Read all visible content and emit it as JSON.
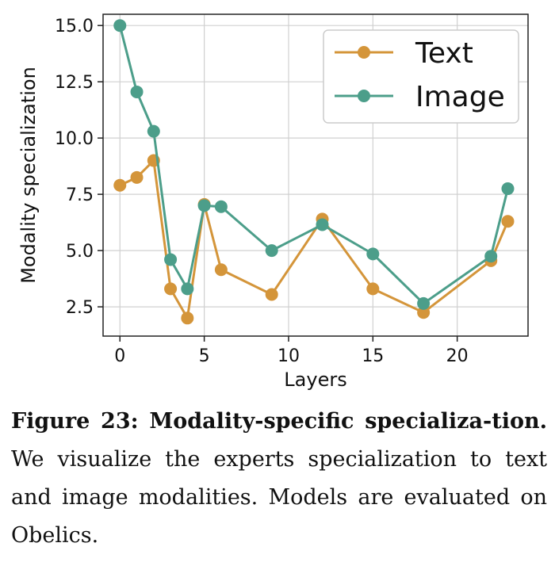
{
  "chart_data": {
    "type": "line",
    "xlabel": "Layers",
    "ylabel": "Modality specialization",
    "xlim": [
      -1,
      24.2
    ],
    "ylim": [
      1.2,
      15.5
    ],
    "xticks": [
      0,
      5,
      10,
      15,
      20
    ],
    "yticks": [
      2.5,
      5.0,
      7.5,
      10.0,
      12.5,
      15.0
    ],
    "xtick_labels": [
      "0",
      "5",
      "10",
      "15",
      "20"
    ],
    "ytick_labels": [
      "2.5",
      "5.0",
      "7.5",
      "10.0",
      "12.5",
      "15.0"
    ],
    "grid": true,
    "legend_position": "top-right",
    "x": [
      0,
      1,
      2,
      3,
      4,
      5,
      6,
      9,
      12,
      15,
      18,
      22,
      23
    ],
    "series": [
      {
        "name": "Text",
        "color": "#D4953A",
        "values": [
          7.9,
          8.25,
          9.0,
          3.3,
          2.0,
          7.05,
          4.15,
          3.05,
          6.4,
          3.3,
          2.25,
          4.55,
          6.3
        ]
      },
      {
        "name": "Image",
        "color": "#4C9E8A",
        "values": [
          15.0,
          12.05,
          10.3,
          4.6,
          3.3,
          7.0,
          6.95,
          5.0,
          6.15,
          4.85,
          2.65,
          4.75,
          7.75
        ]
      }
    ]
  },
  "caption": {
    "title": "Figure 23: Modality-specific specializa-tion.",
    "body": " We visualize the experts specialization to text and image modalities. Models are evaluated on Obelics."
  }
}
